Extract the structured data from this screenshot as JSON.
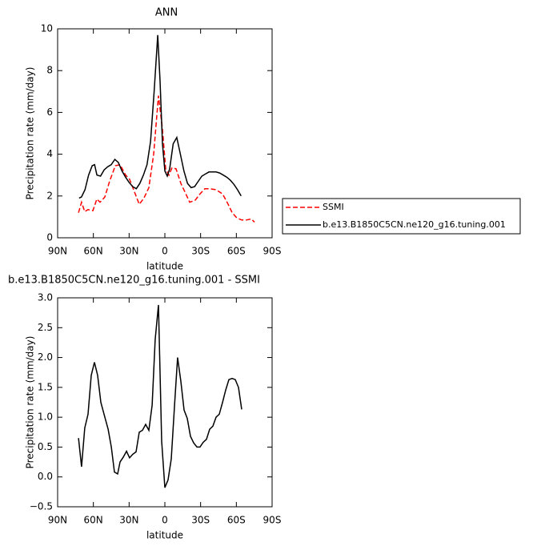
{
  "chart_data": [
    {
      "type": "line",
      "title": "ANN",
      "xlabel": "latitude",
      "ylabel": "Precipitation rate (mm/day)",
      "xlim": [
        90,
        -90
      ],
      "ylim": [
        0,
        10
      ],
      "xticks": [
        {
          "value": 90,
          "label": "90N"
        },
        {
          "value": 60,
          "label": "60N"
        },
        {
          "value": 30,
          "label": "30N"
        },
        0,
        {
          "value": -30,
          "label": "30S"
        },
        {
          "value": -60,
          "label": "60S"
        },
        {
          "value": -90,
          "label": "90S"
        }
      ],
      "yticks": [
        0,
        2,
        4,
        6,
        8,
        10
      ],
      "legend": "right",
      "series": [
        {
          "name": "SSMI",
          "color": "#ff0000",
          "dash": true,
          "x": [
            72.5,
            69.9,
            67.2,
            64.5,
            60.4,
            57.1,
            54.4,
            50.4,
            46.4,
            41.6,
            37.6,
            32.9,
            29.6,
            25.5,
            21.5,
            17.5,
            13.4,
            9.4,
            5.4,
            2.0,
            -0.7,
            -3.4,
            -6.0,
            -9.4,
            -13.4,
            -16.8,
            -20.8,
            -25.5,
            -29.5,
            -33.6,
            -37.6,
            -43.0,
            -48.4,
            -53.1,
            -56.5,
            -60.4,
            -64.5,
            -68.5,
            -72.5,
            -75.2
          ],
          "values": [
            1.2,
            1.7,
            1.25,
            1.35,
            1.3,
            1.85,
            1.7,
            1.95,
            2.7,
            3.45,
            3.5,
            3.0,
            2.8,
            2.2,
            1.6,
            1.9,
            2.4,
            4.0,
            6.8,
            5.2,
            3.3,
            3.0,
            3.35,
            3.3,
            2.6,
            2.2,
            1.7,
            1.8,
            2.1,
            2.35,
            2.35,
            2.3,
            2.1,
            1.6,
            1.2,
            0.95,
            0.85,
            0.85,
            0.9,
            0.75
          ]
        },
        {
          "name": "b.e13.B1850C5CN.ne120_g16.tuning.001",
          "color": "#000000",
          "dash": false,
          "x": [
            72,
            70,
            67,
            64,
            61,
            59,
            57,
            54,
            51,
            48,
            45,
            42,
            39,
            36,
            33,
            30,
            27,
            24,
            21,
            18,
            15,
            12,
            9,
            6,
            4,
            2,
            0,
            -2,
            -4,
            -7,
            -10,
            -13,
            -16,
            -19,
            -22,
            -25,
            -28,
            -31,
            -34,
            -37,
            -40,
            -43,
            -46,
            -49,
            -52,
            -55,
            -58,
            -61,
            -64
          ],
          "values": [
            1.9,
            1.95,
            2.3,
            3.0,
            3.45,
            3.5,
            3.0,
            2.95,
            3.25,
            3.4,
            3.5,
            3.75,
            3.6,
            3.2,
            2.9,
            2.65,
            2.45,
            2.35,
            2.6,
            3.0,
            3.5,
            4.6,
            7.0,
            9.7,
            7.5,
            4.5,
            3.2,
            2.95,
            3.3,
            4.5,
            4.8,
            4.0,
            3.2,
            2.6,
            2.4,
            2.45,
            2.7,
            2.95,
            3.05,
            3.15,
            3.15,
            3.15,
            3.1,
            3.0,
            2.9,
            2.75,
            2.55,
            2.3,
            2.0
          ]
        }
      ]
    },
    {
      "type": "line",
      "title": "b.e13.B1850C5CN.ne120_g16.tuning.001 - SSMI",
      "xlabel": "latitude",
      "ylabel": "Precipitation rate (mm/day)",
      "xlim": [
        90,
        -90
      ],
      "ylim": [
        -0.5,
        3.0
      ],
      "xticks": [
        {
          "value": 90,
          "label": "90N"
        },
        {
          "value": 60,
          "label": "60N"
        },
        {
          "value": 30,
          "label": "30N"
        },
        0,
        {
          "value": -30,
          "label": "30S"
        },
        {
          "value": -60,
          "label": "60S"
        },
        {
          "value": -90,
          "label": "90S"
        }
      ],
      "yticks": [
        {
          "value": -0.5,
          "label": "−0.5"
        },
        {
          "value": 0,
          "label": "0.0"
        },
        {
          "value": 0.5,
          "label": "0.5"
        },
        {
          "value": 1,
          "label": "1.0"
        },
        {
          "value": 1.5,
          "label": "1.5"
        },
        {
          "value": 2,
          "label": "2.0"
        },
        {
          "value": 2.5,
          "label": "2.5"
        },
        {
          "value": 3,
          "label": "3.0"
        }
      ],
      "series": [
        {
          "color": "#000000",
          "dash": false,
          "x": [
            72.5,
            69.9,
            67.2,
            64.5,
            61.8,
            59.1,
            56.4,
            53.7,
            50.4,
            47.6,
            44.9,
            42.3,
            39.6,
            37.6,
            34.9,
            32.2,
            29.6,
            26.9,
            24.2,
            21.5,
            18.8,
            16.1,
            13.4,
            10.7,
            8.1,
            5.4,
            2.7,
            0,
            -2.7,
            -5.4,
            -8.1,
            -10.7,
            -13.4,
            -16.1,
            -18.8,
            -21.5,
            -24.2,
            -26.9,
            -29.5,
            -32.2,
            -34.9,
            -37.6,
            -40.3,
            -43.0,
            -45.7,
            -48.4,
            -51.0,
            -53.7,
            -56.4,
            -59.1,
            -61.8,
            -64.5
          ],
          "values": [
            0.65,
            0.17,
            0.82,
            1.05,
            1.7,
            1.92,
            1.7,
            1.25,
            1.0,
            0.8,
            0.5,
            0.08,
            0.05,
            0.25,
            0.33,
            0.43,
            0.32,
            0.38,
            0.42,
            0.75,
            0.78,
            0.88,
            0.78,
            1.2,
            2.3,
            2.88,
            0.6,
            -0.18,
            -0.05,
            0.3,
            1.2,
            2.0,
            1.6,
            1.12,
            0.98,
            0.68,
            0.57,
            0.5,
            0.5,
            0.58,
            0.63,
            0.8,
            0.85,
            1.0,
            1.05,
            1.25,
            1.45,
            1.63,
            1.65,
            1.63,
            1.5,
            1.13
          ]
        }
      ]
    }
  ]
}
